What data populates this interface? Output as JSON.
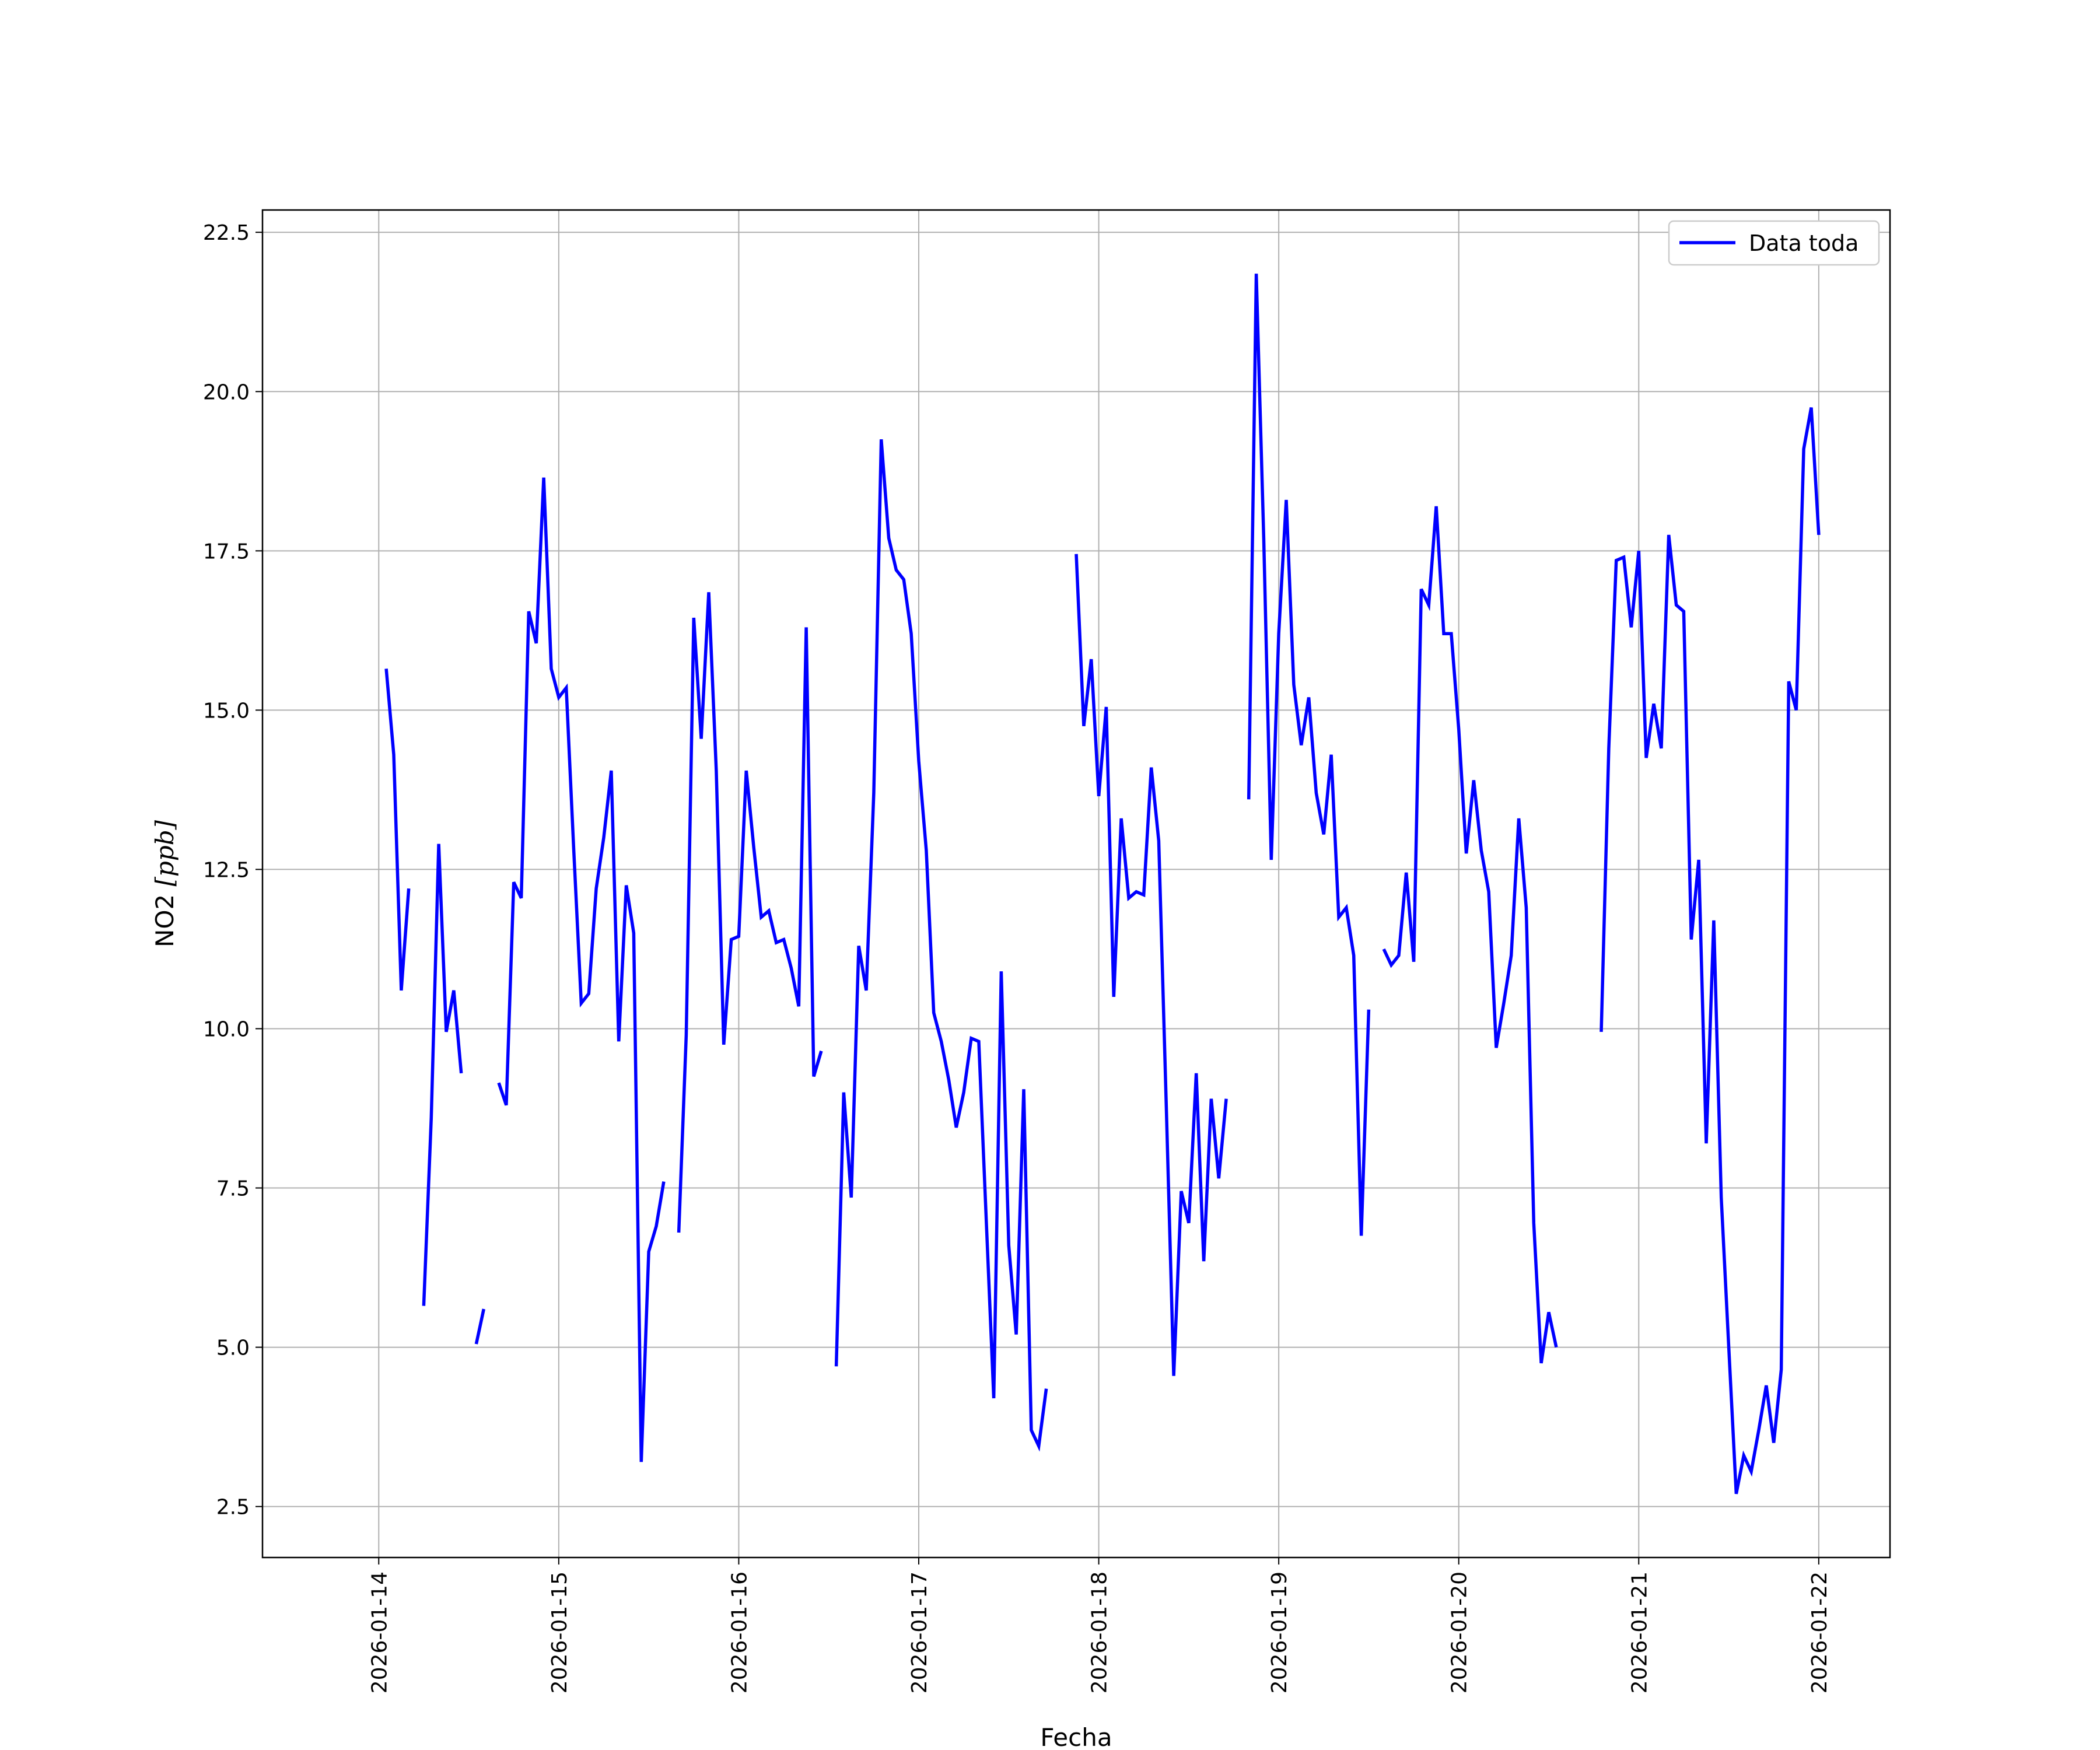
{
  "chart_data": {
    "type": "line",
    "xlabel": "Fecha",
    "ylabel_main": "NO2 ",
    "ylabel_unit": "[ppb]",
    "ylim": [
      1.7,
      22.85
    ],
    "xlim": [
      "2026-01-13 08:30",
      "2026-01-22 09:30"
    ],
    "x_ticks": [
      "2026-01-14",
      "2026-01-15",
      "2026-01-16",
      "2026-01-17",
      "2026-01-18",
      "2026-01-19",
      "2026-01-20",
      "2026-01-21",
      "2026-01-22"
    ],
    "y_ticks": [
      2.5,
      5.0,
      7.5,
      10.0,
      12.5,
      15.0,
      17.5,
      20.0,
      22.5
    ],
    "y_tick_labels": [
      "2.5",
      "5.0",
      "7.5",
      "10.0",
      "12.5",
      "15.0",
      "17.5",
      "20.0",
      "22.5"
    ],
    "grid": true,
    "legend_position": "top-right",
    "series": [
      {
        "name": "Data toda",
        "color": "#0000ff",
        "segments": [
          [
            [
              "2026-01-14 01:00",
              15.65
            ],
            [
              "2026-01-14 02:00",
              14.3
            ],
            [
              "2026-01-14 03:00",
              10.6
            ],
            [
              "2026-01-14 04:00",
              12.2
            ]
          ],
          [
            [
              "2026-01-14 06:00",
              5.65
            ],
            [
              "2026-01-14 07:00",
              8.6
            ],
            [
              "2026-01-14 08:00",
              12.9
            ],
            [
              "2026-01-14 09:00",
              9.95
            ],
            [
              "2026-01-14 10:00",
              10.6
            ],
            [
              "2026-01-14 11:00",
              9.3
            ]
          ],
          [
            [
              "2026-01-14 13:00",
              5.05
            ],
            [
              "2026-01-14 14:00",
              5.6
            ]
          ],
          [
            [
              "2026-01-14 16:00",
              9.15
            ],
            [
              "2026-01-14 17:00",
              8.8
            ],
            [
              "2026-01-14 18:00",
              12.3
            ],
            [
              "2026-01-14 19:00",
              12.05
            ],
            [
              "2026-01-14 20:00",
              16.55
            ],
            [
              "2026-01-14 21:00",
              16.05
            ],
            [
              "2026-01-14 22:00",
              18.65
            ],
            [
              "2026-01-14 23:00",
              15.65
            ],
            [
              "2026-01-15 00:00",
              15.2
            ],
            [
              "2026-01-15 01:00",
              15.35
            ],
            [
              "2026-01-15 02:00",
              12.8
            ],
            [
              "2026-01-15 03:00",
              10.4
            ],
            [
              "2026-01-15 04:00",
              10.55
            ],
            [
              "2026-01-15 05:00",
              12.2
            ],
            [
              "2026-01-15 06:00",
              13.0
            ],
            [
              "2026-01-15 07:00",
              14.05
            ],
            [
              "2026-01-15 08:00",
              9.8
            ],
            [
              "2026-01-15 09:00",
              12.25
            ],
            [
              "2026-01-15 10:00",
              11.5
            ],
            [
              "2026-01-15 11:00",
              3.2
            ],
            [
              "2026-01-15 12:00",
              6.5
            ],
            [
              "2026-01-15 13:00",
              6.9
            ],
            [
              "2026-01-15 14:00",
              7.6
            ]
          ],
          [
            [
              "2026-01-15 16:00",
              6.8
            ],
            [
              "2026-01-15 17:00",
              9.9
            ],
            [
              "2026-01-15 18:00",
              16.45
            ],
            [
              "2026-01-15 19:00",
              14.55
            ],
            [
              "2026-01-15 20:00",
              16.85
            ],
            [
              "2026-01-15 21:00",
              14.05
            ],
            [
              "2026-01-15 22:00",
              9.75
            ],
            [
              "2026-01-15 23:00",
              11.4
            ],
            [
              "2026-01-16 00:00",
              11.45
            ],
            [
              "2026-01-16 01:00",
              14.05
            ],
            [
              "2026-01-16 02:00",
              12.85
            ],
            [
              "2026-01-16 03:00",
              11.75
            ],
            [
              "2026-01-16 04:00",
              11.85
            ],
            [
              "2026-01-16 05:00",
              11.35
            ],
            [
              "2026-01-16 06:00",
              11.4
            ],
            [
              "2026-01-16 07:00",
              10.95
            ],
            [
              "2026-01-16 08:00",
              10.35
            ],
            [
              "2026-01-16 09:00",
              16.3
            ],
            [
              "2026-01-16 10:00",
              9.25
            ],
            [
              "2026-01-16 11:00",
              9.65
            ]
          ],
          [
            [
              "2026-01-16 13:00",
              4.7
            ],
            [
              "2026-01-16 14:00",
              9.0
            ],
            [
              "2026-01-16 15:00",
              7.35
            ],
            [
              "2026-01-16 16:00",
              11.3
            ],
            [
              "2026-01-16 17:00",
              10.6
            ],
            [
              "2026-01-16 18:00",
              13.7
            ],
            [
              "2026-01-16 19:00",
              19.25
            ],
            [
              "2026-01-16 20:00",
              17.7
            ],
            [
              "2026-01-16 21:00",
              17.2
            ],
            [
              "2026-01-16 22:00",
              17.05
            ],
            [
              "2026-01-16 23:00",
              16.2
            ],
            [
              "2026-01-17 00:00",
              14.2
            ],
            [
              "2026-01-17 01:00",
              12.8
            ],
            [
              "2026-01-17 02:00",
              10.25
            ],
            [
              "2026-01-17 03:00",
              9.8
            ],
            [
              "2026-01-17 04:00",
              9.2
            ],
            [
              "2026-01-17 05:00",
              8.45
            ],
            [
              "2026-01-17 06:00",
              9.0
            ],
            [
              "2026-01-17 07:00",
              9.85
            ],
            [
              "2026-01-17 08:00",
              9.8
            ],
            [
              "2026-01-17 09:00",
              7.0
            ],
            [
              "2026-01-17 10:00",
              4.2
            ],
            [
              "2026-01-17 11:00",
              10.9
            ],
            [
              "2026-01-17 12:00",
              6.6
            ],
            [
              "2026-01-17 13:00",
              5.2
            ],
            [
              "2026-01-17 14:00",
              9.05
            ],
            [
              "2026-01-17 15:00",
              3.7
            ],
            [
              "2026-01-17 16:00",
              3.45
            ],
            [
              "2026-01-17 17:00",
              4.35
            ]
          ],
          [
            [
              "2026-01-17 21:00",
              17.45
            ],
            [
              "2026-01-17 22:00",
              14.75
            ],
            [
              "2026-01-17 23:00",
              15.8
            ],
            [
              "2026-01-18 00:00",
              13.65
            ],
            [
              "2026-01-18 01:00",
              15.05
            ],
            [
              "2026-01-18 02:00",
              10.5
            ],
            [
              "2026-01-18 03:00",
              13.3
            ],
            [
              "2026-01-18 04:00",
              12.05
            ],
            [
              "2026-01-18 05:00",
              12.15
            ],
            [
              "2026-01-18 06:00",
              12.1
            ],
            [
              "2026-01-18 07:00",
              14.1
            ],
            [
              "2026-01-18 08:00",
              12.95
            ],
            [
              "2026-01-18 09:00",
              8.8
            ],
            [
              "2026-01-18 10:00",
              4.55
            ],
            [
              "2026-01-18 11:00",
              7.45
            ],
            [
              "2026-01-18 12:00",
              6.95
            ],
            [
              "2026-01-18 13:00",
              9.3
            ],
            [
              "2026-01-18 14:00",
              6.35
            ],
            [
              "2026-01-18 15:00",
              8.9
            ],
            [
              "2026-01-18 16:00",
              7.65
            ],
            [
              "2026-01-18 17:00",
              8.9
            ]
          ],
          [
            [
              "2026-01-18 20:00",
              13.6
            ],
            [
              "2026-01-18 21:00",
              21.85
            ],
            [
              "2026-01-18 22:00",
              17.7
            ],
            [
              "2026-01-18 23:00",
              12.65
            ],
            [
              "2026-01-19 00:00",
              16.2
            ],
            [
              "2026-01-19 01:00",
              18.3
            ],
            [
              "2026-01-19 02:00",
              15.4
            ],
            [
              "2026-01-19 03:00",
              14.45
            ],
            [
              "2026-01-19 04:00",
              15.2
            ],
            [
              "2026-01-19 05:00",
              13.7
            ],
            [
              "2026-01-19 06:00",
              13.05
            ],
            [
              "2026-01-19 07:00",
              14.3
            ],
            [
              "2026-01-19 08:00",
              11.75
            ],
            [
              "2026-01-19 09:00",
              11.9
            ],
            [
              "2026-01-19 10:00",
              11.15
            ],
            [
              "2026-01-19 11:00",
              6.75
            ],
            [
              "2026-01-19 12:00",
              10.3
            ]
          ],
          [
            [
              "2026-01-19 14:00",
              11.25
            ],
            [
              "2026-01-19 15:00",
              11.0
            ],
            [
              "2026-01-19 16:00",
              11.15
            ],
            [
              "2026-01-19 17:00",
              12.45
            ],
            [
              "2026-01-19 18:00",
              11.05
            ],
            [
              "2026-01-19 19:00",
              16.9
            ],
            [
              "2026-01-19 20:00",
              16.65
            ],
            [
              "2026-01-19 21:00",
              18.2
            ],
            [
              "2026-01-19 22:00",
              16.2
            ],
            [
              "2026-01-19 23:00",
              16.2
            ],
            [
              "2026-01-20 00:00",
              14.7
            ],
            [
              "2026-01-20 01:00",
              12.75
            ],
            [
              "2026-01-20 02:00",
              13.9
            ],
            [
              "2026-01-20 03:00",
              12.8
            ],
            [
              "2026-01-20 04:00",
              12.15
            ],
            [
              "2026-01-20 05:00",
              9.7
            ],
            [
              "2026-01-20 06:00",
              10.4
            ],
            [
              "2026-01-20 07:00",
              11.15
            ],
            [
              "2026-01-20 08:00",
              13.3
            ],
            [
              "2026-01-20 09:00",
              11.9
            ],
            [
              "2026-01-20 10:00",
              6.95
            ],
            [
              "2026-01-20 11:00",
              4.75
            ],
            [
              "2026-01-20 12:00",
              5.55
            ],
            [
              "2026-01-20 13:00",
              5.0
            ]
          ],
          [
            [
              "2026-01-20 19:00",
              9.95
            ],
            [
              "2026-01-20 20:00",
              14.4
            ],
            [
              "2026-01-20 21:00",
              17.35
            ],
            [
              "2026-01-20 22:00",
              17.4
            ],
            [
              "2026-01-20 23:00",
              16.3
            ],
            [
              "2026-01-21 00:00",
              17.5
            ],
            [
              "2026-01-21 01:00",
              14.25
            ],
            [
              "2026-01-21 02:00",
              15.1
            ],
            [
              "2026-01-21 03:00",
              14.4
            ],
            [
              "2026-01-21 04:00",
              17.75
            ],
            [
              "2026-01-21 05:00",
              16.65
            ],
            [
              "2026-01-21 06:00",
              16.55
            ],
            [
              "2026-01-21 07:00",
              11.4
            ],
            [
              "2026-01-21 08:00",
              12.65
            ],
            [
              "2026-01-21 09:00",
              8.2
            ],
            [
              "2026-01-21 10:00",
              11.7
            ],
            [
              "2026-01-21 11:00",
              7.35
            ],
            [
              "2026-01-21 12:00",
              5.0
            ],
            [
              "2026-01-21 13:00",
              2.7
            ],
            [
              "2026-01-21 14:00",
              3.3
            ],
            [
              "2026-01-21 15:00",
              3.05
            ],
            [
              "2026-01-21 16:00",
              3.7
            ],
            [
              "2026-01-21 17:00",
              4.4
            ],
            [
              "2026-01-21 18:00",
              3.5
            ],
            [
              "2026-01-21 19:00",
              4.65
            ],
            [
              "2026-01-21 20:00",
              15.45
            ],
            [
              "2026-01-21 21:00",
              15.0
            ],
            [
              "2026-01-21 22:00",
              19.1
            ],
            [
              "2026-01-21 23:00",
              19.75
            ],
            [
              "2026-01-22 00:00",
              17.75
            ]
          ]
        ]
      }
    ]
  }
}
